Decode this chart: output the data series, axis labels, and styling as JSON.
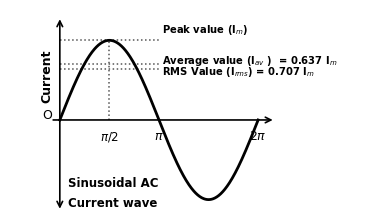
{
  "title_line1": "Sinusoidal AC",
  "title_line2": "Current wave",
  "ylabel": "Current",
  "peak_value": 1.0,
  "avg_value": 0.637,
  "rms_value": 0.707,
  "bg_color": "#ffffff",
  "line_color": "#000000",
  "dotted_color": "#555555",
  "text_color": "#000000",
  "axis_color": "#000000",
  "peak_label": "Peak value (I$_m$)",
  "avg_label": "Average value (I$_{av}$ )  = 0.637 I$_m$",
  "rms_label": "RMS Value (I$_{rms}$) = 0.707 I$_m$",
  "xlim_left": -0.5,
  "xlim_right": 9.5,
  "ylim_bottom": -1.25,
  "ylim_top": 1.45,
  "wave_lw": 2.0,
  "axis_lw": 1.2,
  "dot_lw": 1.1,
  "font_size_annot": 7.2,
  "font_size_tick": 8.5,
  "font_size_label": 9.0,
  "font_size_title": 8.5
}
